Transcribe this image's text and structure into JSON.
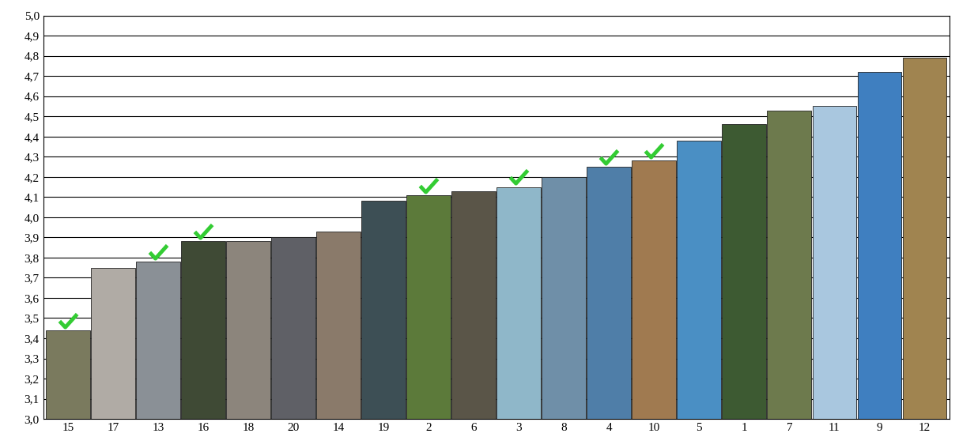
{
  "chart_data": {
    "type": "bar",
    "categories": [
      "15",
      "17",
      "13",
      "16",
      "18",
      "20",
      "14",
      "19",
      "2",
      "6",
      "3",
      "8",
      "4",
      "10",
      "5",
      "1",
      "7",
      "11",
      "9",
      "12"
    ],
    "values": [
      3.44,
      3.75,
      3.78,
      3.88,
      3.88,
      3.9,
      3.93,
      4.08,
      4.11,
      4.13,
      4.15,
      4.2,
      4.25,
      4.28,
      4.38,
      4.46,
      4.53,
      4.55,
      4.72,
      4.79
    ],
    "checked": [
      true,
      false,
      true,
      true,
      false,
      false,
      false,
      false,
      true,
      false,
      true,
      false,
      true,
      true,
      false,
      false,
      false,
      false,
      false,
      false
    ],
    "colors": [
      "#7a7a5e",
      "#b0aba5",
      "#8a9096",
      "#3f4a35",
      "#8c857c",
      "#5f6066",
      "#8a7a6a",
      "#3d4f55",
      "#5c7a3a",
      "#5a5548",
      "#8fb7c9",
      "#6f8fa8",
      "#4f7ea8",
      "#a07a50",
      "#4a8fc4",
      "#3d5a32",
      "#6d7a4d",
      "#a9c7df",
      "#3f7fc0",
      "#a08450"
    ],
    "check_color": "#33cc33",
    "ylim": [
      3.0,
      5.0
    ],
    "yticks": [
      {
        "value": 3.0,
        "label": "3,0"
      },
      {
        "value": 3.1,
        "label": "3,1"
      },
      {
        "value": 3.2,
        "label": "3,2"
      },
      {
        "value": 3.3,
        "label": "3,3"
      },
      {
        "value": 3.4,
        "label": "3,4"
      },
      {
        "value": 3.5,
        "label": "3,5"
      },
      {
        "value": 3.6,
        "label": "3,6"
      },
      {
        "value": 3.7,
        "label": "3,7"
      },
      {
        "value": 3.8,
        "label": "3,8"
      },
      {
        "value": 3.9,
        "label": "3,9"
      },
      {
        "value": 4.0,
        "label": "4,0"
      },
      {
        "value": 4.1,
        "label": "4,1"
      },
      {
        "value": 4.2,
        "label": "4,2"
      },
      {
        "value": 4.3,
        "label": "4,3"
      },
      {
        "value": 4.4,
        "label": "4,4"
      },
      {
        "value": 4.5,
        "label": "4,5"
      },
      {
        "value": 4.6,
        "label": "4,6"
      },
      {
        "value": 4.7,
        "label": "4,7"
      },
      {
        "value": 4.8,
        "label": "4,8"
      },
      {
        "value": 4.9,
        "label": "4,9"
      },
      {
        "value": 5.0,
        "label": "5,0"
      }
    ],
    "grid": true
  }
}
